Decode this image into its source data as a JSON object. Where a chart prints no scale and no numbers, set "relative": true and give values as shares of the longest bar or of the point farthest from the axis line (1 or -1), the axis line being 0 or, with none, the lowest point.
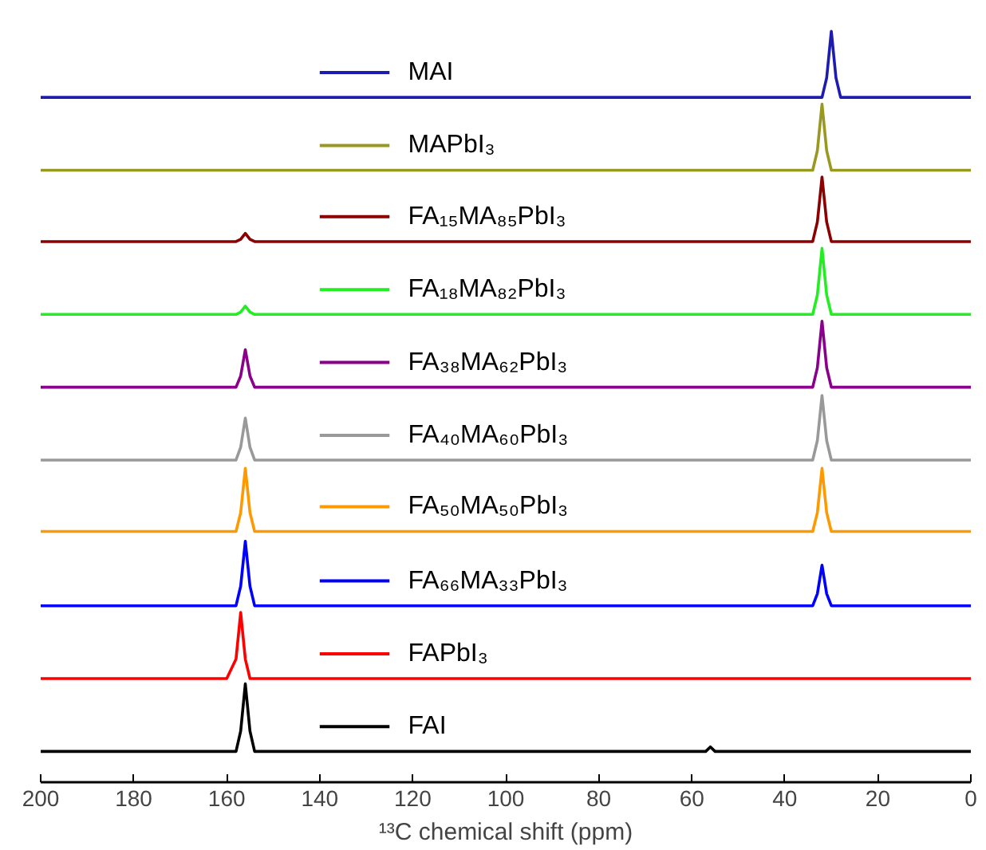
{
  "chart_data": {
    "type": "line",
    "relative": true,
    "xlabel": "¹³C chemical shift (ppm)",
    "x": [
      200,
      160,
      158,
      157,
      156,
      155,
      154,
      150,
      60,
      57,
      56,
      55,
      50,
      36,
      34,
      33,
      32,
      31,
      30,
      29,
      28,
      26,
      0
    ],
    "xlim": [
      200,
      0
    ],
    "xticks": [
      0,
      20,
      40,
      60,
      80,
      100,
      120,
      140,
      160,
      180,
      200
    ],
    "grid": false,
    "legend": "top",
    "tick_labels": "x",
    "series": [
      {
        "name": "MAI",
        "color": "#1c1cb0",
        "values": [
          0.912,
          0.912,
          0.912,
          0.912,
          0.912,
          0.912,
          0.912,
          0.912,
          0.912,
          0.912,
          0.912,
          0.912,
          0.912,
          0.912,
          0.912,
          0.912,
          0.912,
          0.938,
          1.0,
          0.938,
          0.912,
          0.912,
          0.912
        ]
      },
      {
        "name": "MAPbI₃",
        "color": "#999922",
        "values": [
          0.815,
          0.815,
          0.815,
          0.815,
          0.815,
          0.815,
          0.815,
          0.815,
          0.815,
          0.815,
          0.815,
          0.815,
          0.815,
          0.815,
          0.815,
          0.841,
          0.903,
          0.841,
          0.815,
          0.815,
          0.815,
          0.815,
          0.815
        ]
      },
      {
        "name": "FA₁₅MA₈₅PbI₃",
        "color": "#8b0000",
        "values": [
          0.72,
          0.72,
          0.72,
          0.723,
          0.731,
          0.723,
          0.72,
          0.72,
          0.72,
          0.72,
          0.72,
          0.72,
          0.72,
          0.72,
          0.72,
          0.746,
          0.806,
          0.746,
          0.72,
          0.72,
          0.72,
          0.72,
          0.72
        ]
      },
      {
        "name": "FA₁₈MA₈₂PbI₃",
        "color": "#22ee22",
        "values": [
          0.623,
          0.623,
          0.623,
          0.626,
          0.634,
          0.626,
          0.623,
          0.623,
          0.623,
          0.623,
          0.623,
          0.623,
          0.623,
          0.623,
          0.623,
          0.649,
          0.711,
          0.649,
          0.623,
          0.623,
          0.623,
          0.623,
          0.623
        ]
      },
      {
        "name": "FA₃₈MA₆₂PbI₃",
        "color": "#8b008b",
        "values": [
          0.526,
          0.526,
          0.526,
          0.541,
          0.576,
          0.541,
          0.526,
          0.526,
          0.526,
          0.526,
          0.526,
          0.526,
          0.526,
          0.526,
          0.526,
          0.552,
          0.614,
          0.552,
          0.526,
          0.526,
          0.526,
          0.526,
          0.526
        ]
      },
      {
        "name": "FA₄₀MA₆₀PbI₃",
        "color": "#999999",
        "values": [
          0.429,
          0.429,
          0.429,
          0.446,
          0.485,
          0.446,
          0.429,
          0.429,
          0.429,
          0.429,
          0.429,
          0.429,
          0.429,
          0.429,
          0.429,
          0.455,
          0.515,
          0.455,
          0.429,
          0.429,
          0.429,
          0.429,
          0.429
        ]
      },
      {
        "name": "FA₅₀MA₅₀PbI₃",
        "color": "#ff9900",
        "values": [
          0.334,
          0.334,
          0.334,
          0.359,
          0.418,
          0.359,
          0.334,
          0.334,
          0.334,
          0.334,
          0.334,
          0.334,
          0.334,
          0.334,
          0.334,
          0.359,
          0.418,
          0.359,
          0.334,
          0.334,
          0.334,
          0.334,
          0.334
        ]
      },
      {
        "name": "FA₆₆MA₃₃PbI₃",
        "color": "#0000ff",
        "values": [
          0.235,
          0.235,
          0.235,
          0.261,
          0.321,
          0.261,
          0.235,
          0.235,
          0.235,
          0.235,
          0.235,
          0.235,
          0.235,
          0.235,
          0.235,
          0.251,
          0.289,
          0.251,
          0.235,
          0.235,
          0.235,
          0.235,
          0.235
        ]
      },
      {
        "name": "FAPbI₃",
        "color": "#ff0000",
        "values": [
          0.138,
          0.138,
          0.164,
          0.226,
          0.164,
          0.138,
          0.138,
          0.138,
          0.138,
          0.138,
          0.138,
          0.138,
          0.138,
          0.138,
          0.138,
          0.138,
          0.138,
          0.138,
          0.138,
          0.138,
          0.138,
          0.138,
          0.138
        ]
      },
      {
        "name": "FAI",
        "color": "#000000",
        "values": [
          0.041,
          0.041,
          0.041,
          0.068,
          0.131,
          0.068,
          0.041,
          0.041,
          0.041,
          0.041,
          0.047,
          0.041,
          0.041,
          0.041,
          0.041,
          0.041,
          0.041,
          0.041,
          0.041,
          0.041,
          0.041,
          0.041,
          0.041
        ]
      }
    ]
  }
}
